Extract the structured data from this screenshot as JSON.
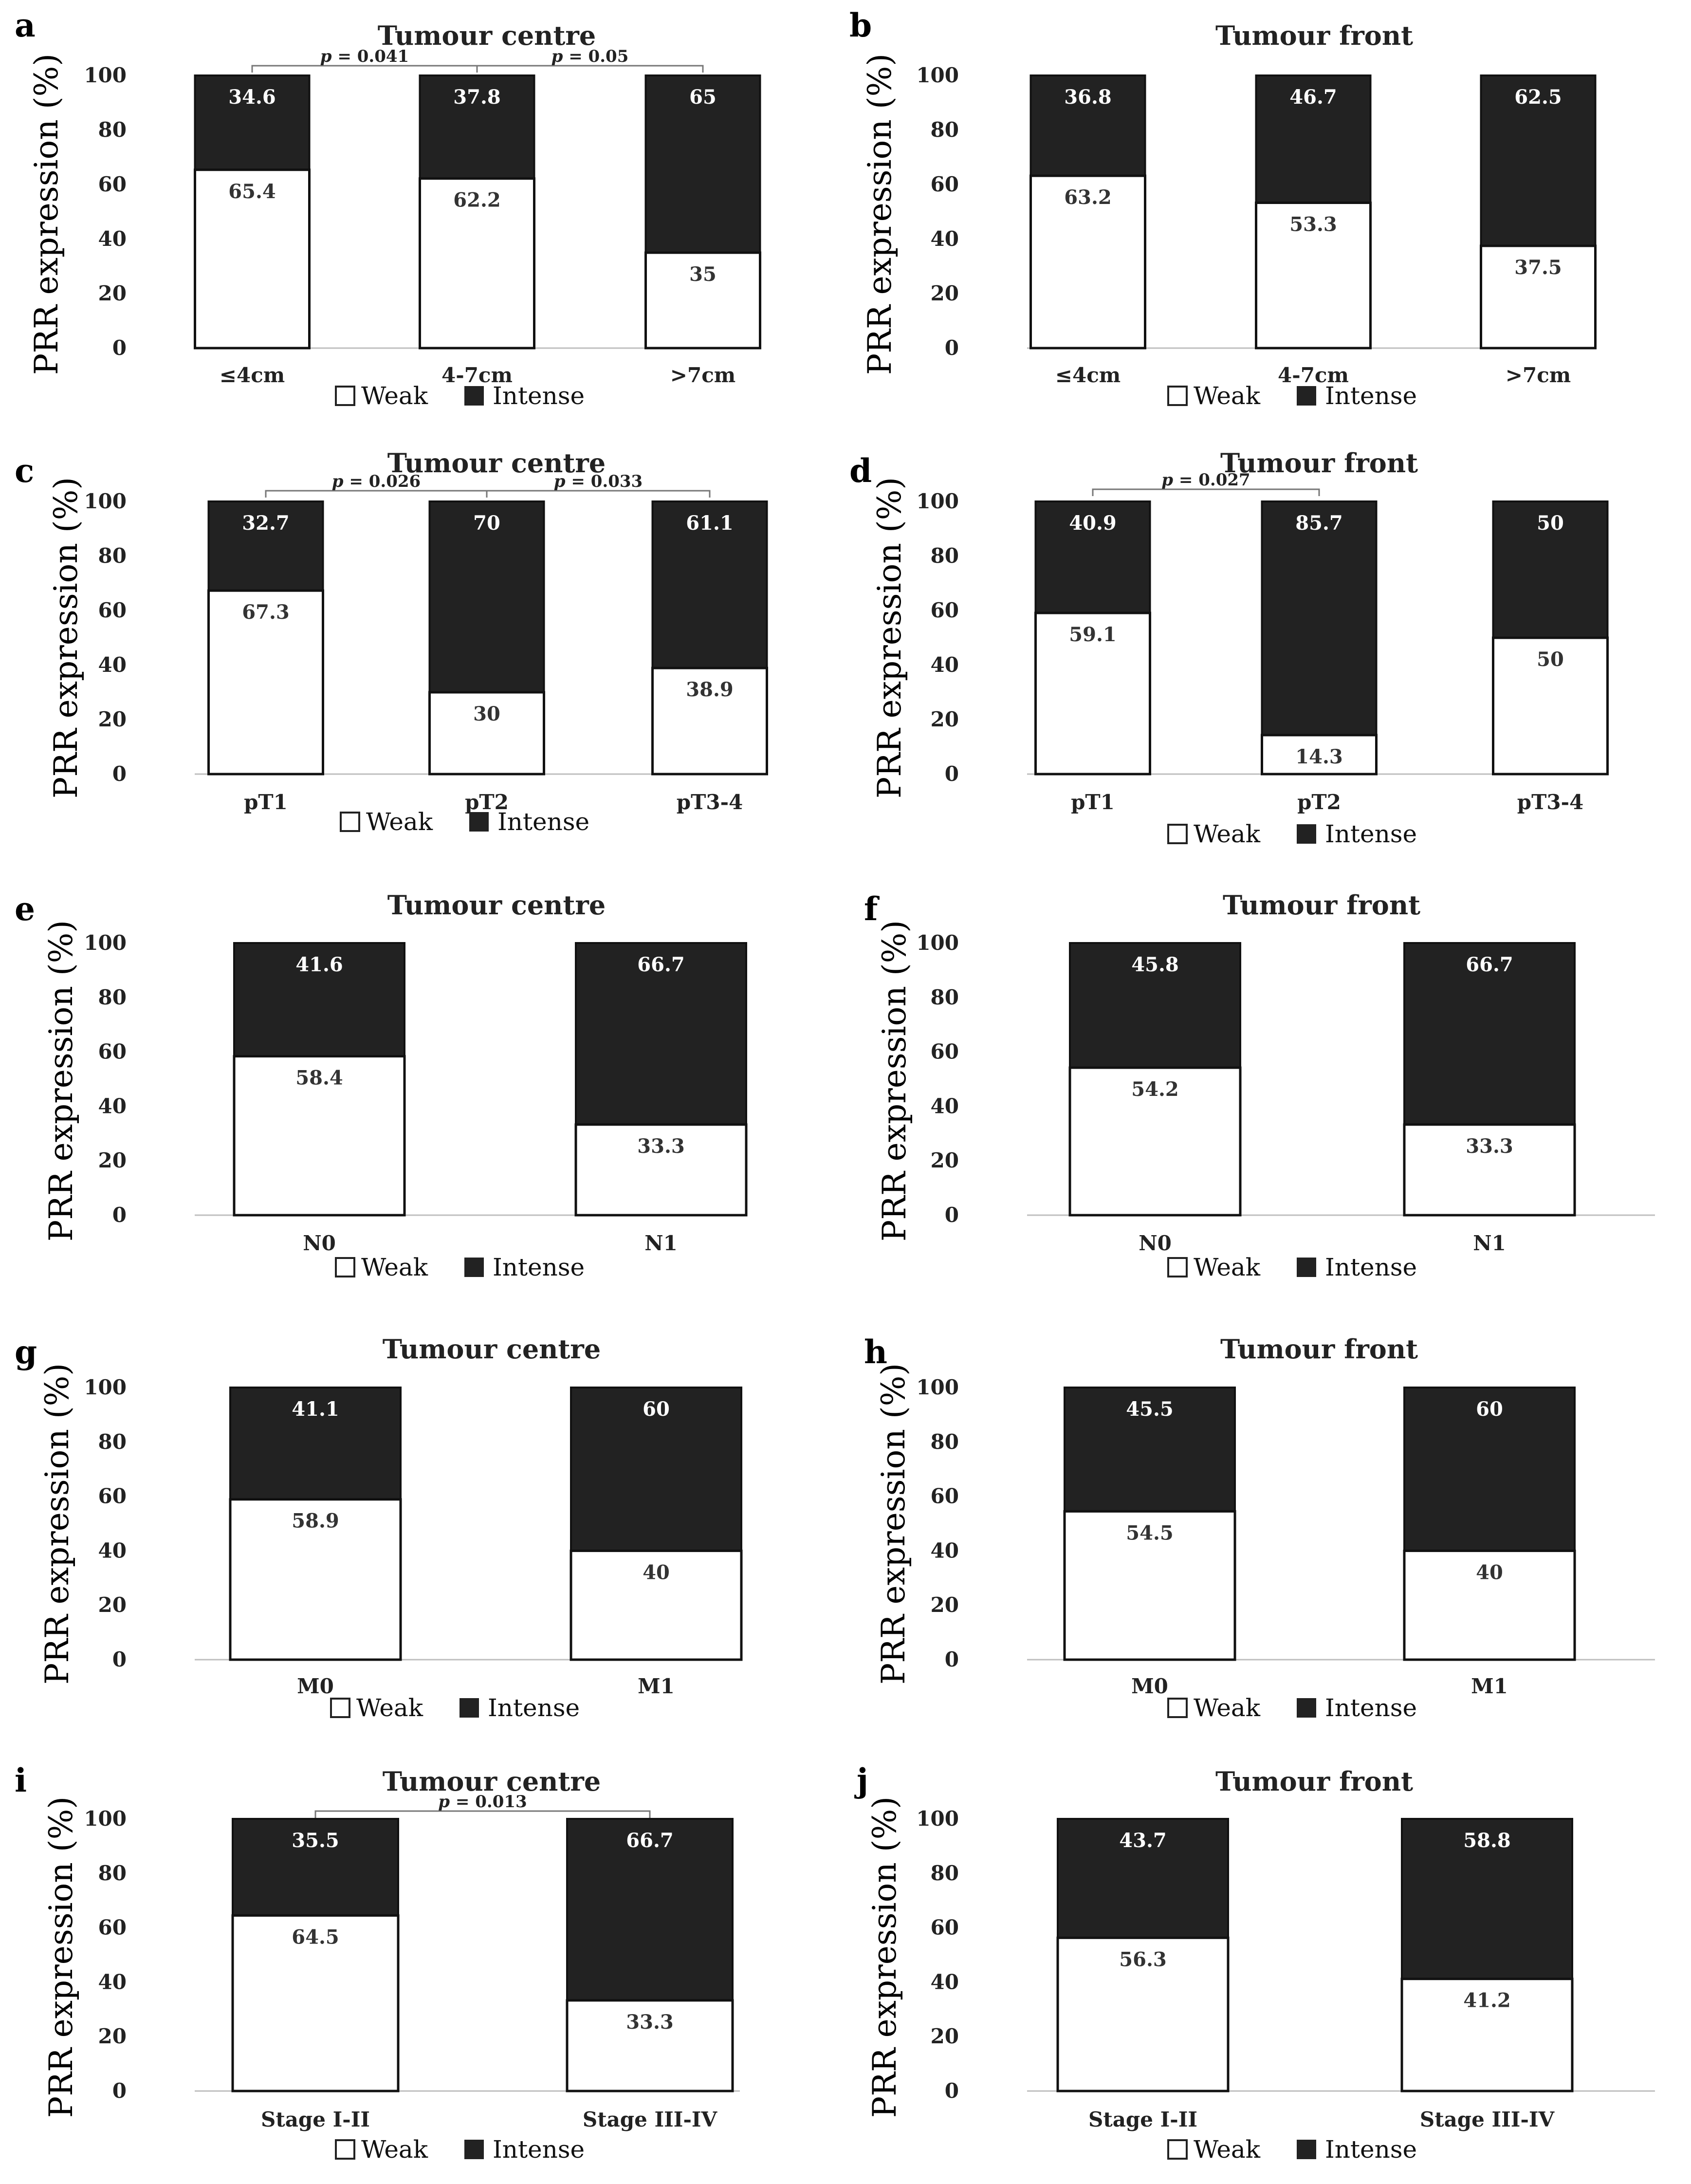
{
  "chart_data": [
    {
      "panel": "a",
      "type": "bar",
      "stacked": true,
      "title": "Tumour centre",
      "ylabel": "PRR expression (%)",
      "ylim": [
        0,
        100
      ],
      "yticks": [
        0,
        20,
        40,
        60,
        80,
        100
      ],
      "categories": [
        "≤4cm",
        "4-7cm",
        ">7cm"
      ],
      "series": [
        {
          "name": "Weak",
          "color": "#ffffff",
          "values": [
            65.4,
            62.2,
            35
          ]
        },
        {
          "name": "Intense",
          "color": "#222222",
          "values": [
            34.6,
            37.8,
            65
          ]
        }
      ],
      "annotations": [
        {
          "from": 0,
          "to": 1,
          "p": "= 0.041"
        },
        {
          "from": 1,
          "to": 2,
          "p": "= 0.05"
        }
      ]
    },
    {
      "panel": "b",
      "type": "bar",
      "stacked": true,
      "title": "Tumour front",
      "ylabel": "PRR expression (%)",
      "ylim": [
        0,
        100
      ],
      "yticks": [
        0,
        20,
        40,
        60,
        80,
        100
      ],
      "categories": [
        "≤4cm",
        "4-7cm",
        ">7cm"
      ],
      "series": [
        {
          "name": "Weak",
          "color": "#ffffff",
          "values": [
            63.2,
            53.3,
            37.5
          ]
        },
        {
          "name": "Intense",
          "color": "#222222",
          "values": [
            36.8,
            46.7,
            62.5
          ]
        }
      ],
      "annotations": []
    },
    {
      "panel": "c",
      "type": "bar",
      "stacked": true,
      "title": "Tumour centre",
      "ylabel": "PRR expression (%)",
      "ylim": [
        0,
        100
      ],
      "yticks": [
        0,
        20,
        40,
        60,
        80,
        100
      ],
      "categories": [
        "pT1",
        "pT2",
        "pT3-4"
      ],
      "series": [
        {
          "name": "Weak",
          "color": "#ffffff",
          "values": [
            67.3,
            30,
            38.9
          ]
        },
        {
          "name": "Intense",
          "color": "#222222",
          "values": [
            32.7,
            70,
            61.1
          ]
        }
      ],
      "annotations": [
        {
          "from": 0,
          "to": 1,
          "p": "= 0.026"
        },
        {
          "from": 1,
          "to": 2,
          "p": "= 0.033"
        }
      ]
    },
    {
      "panel": "d",
      "type": "bar",
      "stacked": true,
      "title": "Tumour front",
      "ylabel": "PRR expression (%)",
      "ylim": [
        0,
        100
      ],
      "yticks": [
        0,
        20,
        40,
        60,
        80,
        100
      ],
      "categories": [
        "pT1",
        "pT2",
        "pT3-4"
      ],
      "series": [
        {
          "name": "Weak",
          "color": "#ffffff",
          "values": [
            59.1,
            14.3,
            50
          ]
        },
        {
          "name": "Intense",
          "color": "#222222",
          "values": [
            40.9,
            85.7,
            50
          ]
        }
      ],
      "annotations": [
        {
          "from": 0,
          "to": 1,
          "p": "= 0.027"
        }
      ]
    },
    {
      "panel": "e",
      "type": "bar",
      "stacked": true,
      "title": "Tumour centre",
      "ylabel": "PRR expression (%)",
      "ylim": [
        0,
        100
      ],
      "yticks": [
        0,
        20,
        40,
        60,
        80,
        100
      ],
      "categories": [
        "N0",
        "N1"
      ],
      "series": [
        {
          "name": "Weak",
          "color": "#ffffff",
          "values": [
            58.4,
            33.3
          ]
        },
        {
          "name": "Intense",
          "color": "#222222",
          "values": [
            41.6,
            66.7
          ]
        }
      ],
      "annotations": []
    },
    {
      "panel": "f",
      "type": "bar",
      "stacked": true,
      "title": "Tumour front",
      "ylabel": "PRR expression (%)",
      "ylim": [
        0,
        100
      ],
      "yticks": [
        0,
        20,
        40,
        60,
        80,
        100
      ],
      "categories": [
        "N0",
        "N1"
      ],
      "series": [
        {
          "name": "Weak",
          "color": "#ffffff",
          "values": [
            54.2,
            33.3
          ]
        },
        {
          "name": "Intense",
          "color": "#222222",
          "values": [
            45.8,
            66.7
          ]
        }
      ],
      "annotations": []
    },
    {
      "panel": "g",
      "type": "bar",
      "stacked": true,
      "title": "Tumour centre",
      "ylabel": "PRR expression (%)",
      "ylim": [
        0,
        100
      ],
      "yticks": [
        0,
        20,
        40,
        60,
        80,
        100
      ],
      "categories": [
        "M0",
        "M1"
      ],
      "series": [
        {
          "name": "Weak",
          "color": "#ffffff",
          "values": [
            58.9,
            40
          ]
        },
        {
          "name": "Intense",
          "color": "#222222",
          "values": [
            41.1,
            60
          ]
        }
      ],
      "annotations": []
    },
    {
      "panel": "h",
      "type": "bar",
      "stacked": true,
      "title": "Tumour front",
      "ylabel": "PRR expression (%)",
      "ylim": [
        0,
        100
      ],
      "yticks": [
        0,
        20,
        40,
        60,
        80,
        100
      ],
      "categories": [
        "M0",
        "M1"
      ],
      "series": [
        {
          "name": "Weak",
          "color": "#ffffff",
          "values": [
            54.5,
            40
          ]
        },
        {
          "name": "Intense",
          "color": "#222222",
          "values": [
            45.5,
            60
          ]
        }
      ],
      "annotations": []
    },
    {
      "panel": "i",
      "type": "bar",
      "stacked": true,
      "title": "Tumour centre",
      "ylabel": "PRR expression (%)",
      "ylim": [
        0,
        100
      ],
      "yticks": [
        0,
        20,
        40,
        60,
        80,
        100
      ],
      "categories": [
        "Stage I-II",
        "Stage III-IV"
      ],
      "series": [
        {
          "name": "Weak",
          "color": "#ffffff",
          "values": [
            64.5,
            33.3
          ]
        },
        {
          "name": "Intense",
          "color": "#222222",
          "values": [
            35.5,
            66.7
          ]
        }
      ],
      "annotations": [
        {
          "from": 0,
          "to": 1,
          "p": "= 0.013"
        }
      ]
    },
    {
      "panel": "j",
      "type": "bar",
      "stacked": true,
      "title": "Tumour front",
      "ylabel": "PRR expression (%)",
      "ylim": [
        0,
        100
      ],
      "yticks": [
        0,
        20,
        40,
        60,
        80,
        100
      ],
      "categories": [
        "Stage I-II",
        "Stage III-IV"
      ],
      "series": [
        {
          "name": "Weak",
          "color": "#ffffff",
          "values": [
            56.3,
            41.2
          ]
        },
        {
          "name": "Intense",
          "color": "#222222",
          "values": [
            43.7,
            58.8
          ]
        }
      ],
      "annotations": []
    }
  ],
  "legend": {
    "weak": "Weak",
    "intense": "Intense",
    "p_symbol": "p"
  }
}
